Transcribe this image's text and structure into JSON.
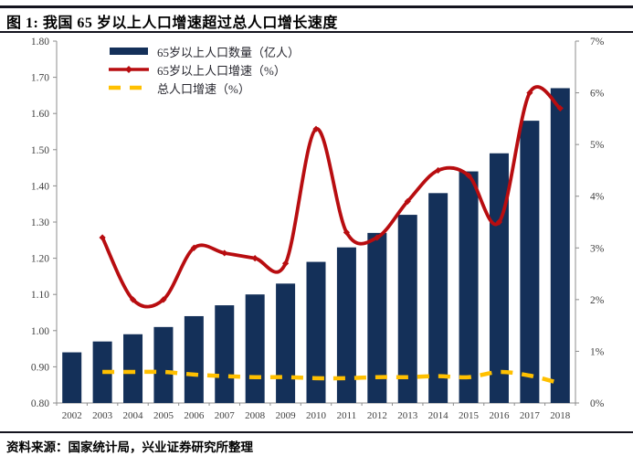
{
  "header": {
    "title": "图 1: 我国 65 岁以上人口增速超过总人口增长速度"
  },
  "footer": {
    "source": "资料来源：国家统计局，兴业证券研究所整理"
  },
  "legend": {
    "items": [
      {
        "label": "65岁以上人口数量（亿人）",
        "swatch": "bar"
      },
      {
        "label": "65岁以上人口增速（%）",
        "swatch": "line-marker"
      },
      {
        "label": "总人口增速（%）",
        "swatch": "dashed"
      }
    ]
  },
  "theme": {
    "bar_color": "#143059",
    "line_color": "#B80D10",
    "dashed_color": "#FFC000",
    "axis_color": "#8C8C8C",
    "axis_text_color": "#3F3F3F",
    "rule_color": "#14141F"
  },
  "chart_data": {
    "type": "bar",
    "subtype": "combo bar + smoothed lines, dual axis",
    "categories": [
      "2002",
      "2003",
      "2004",
      "2005",
      "2006",
      "2007",
      "2008",
      "2009",
      "2010",
      "2011",
      "2012",
      "2013",
      "2014",
      "2015",
      "2016",
      "2017",
      "2018"
    ],
    "series": [
      {
        "name": "65岁以上人口数量（亿人）",
        "chart_type": "bar",
        "axis": "left",
        "color": "#143059",
        "values": [
          0.94,
          0.97,
          0.99,
          1.01,
          1.04,
          1.07,
          1.1,
          1.13,
          1.19,
          1.23,
          1.27,
          1.32,
          1.38,
          1.44,
          1.49,
          1.58,
          1.67
        ]
      },
      {
        "name": "65岁以上人口增速（%）",
        "chart_type": "line-smooth",
        "axis": "right",
        "color": "#B80D10",
        "marker": "diamond",
        "values": [
          null,
          3.2,
          2.0,
          2.0,
          3.0,
          2.9,
          2.8,
          2.7,
          5.3,
          3.3,
          3.2,
          3.9,
          4.5,
          4.4,
          3.5,
          6.0,
          5.7
        ]
      },
      {
        "name": "总人口增速（%）",
        "chart_type": "line-dashed",
        "axis": "right",
        "color": "#FFC000",
        "values": [
          null,
          0.6,
          0.6,
          0.6,
          0.55,
          0.52,
          0.5,
          0.5,
          0.48,
          0.48,
          0.5,
          0.5,
          0.52,
          0.5,
          0.6,
          0.53,
          0.38
        ]
      }
    ],
    "left_axis": {
      "min": 0.8,
      "max": 1.8,
      "step": 0.1,
      "tick_labels": [
        "1.80",
        "1.70",
        "1.60",
        "1.50",
        "1.40",
        "1.30",
        "1.20",
        "1.10",
        "1.00",
        "0.90",
        "0.80"
      ]
    },
    "right_axis": {
      "min": 0,
      "max": 7,
      "step": 1,
      "tick_labels": [
        "7%",
        "6%",
        "5%",
        "4%",
        "3%",
        "2%",
        "1%",
        "0%"
      ]
    },
    "grid": false,
    "legend_position": "top-left-inside"
  }
}
